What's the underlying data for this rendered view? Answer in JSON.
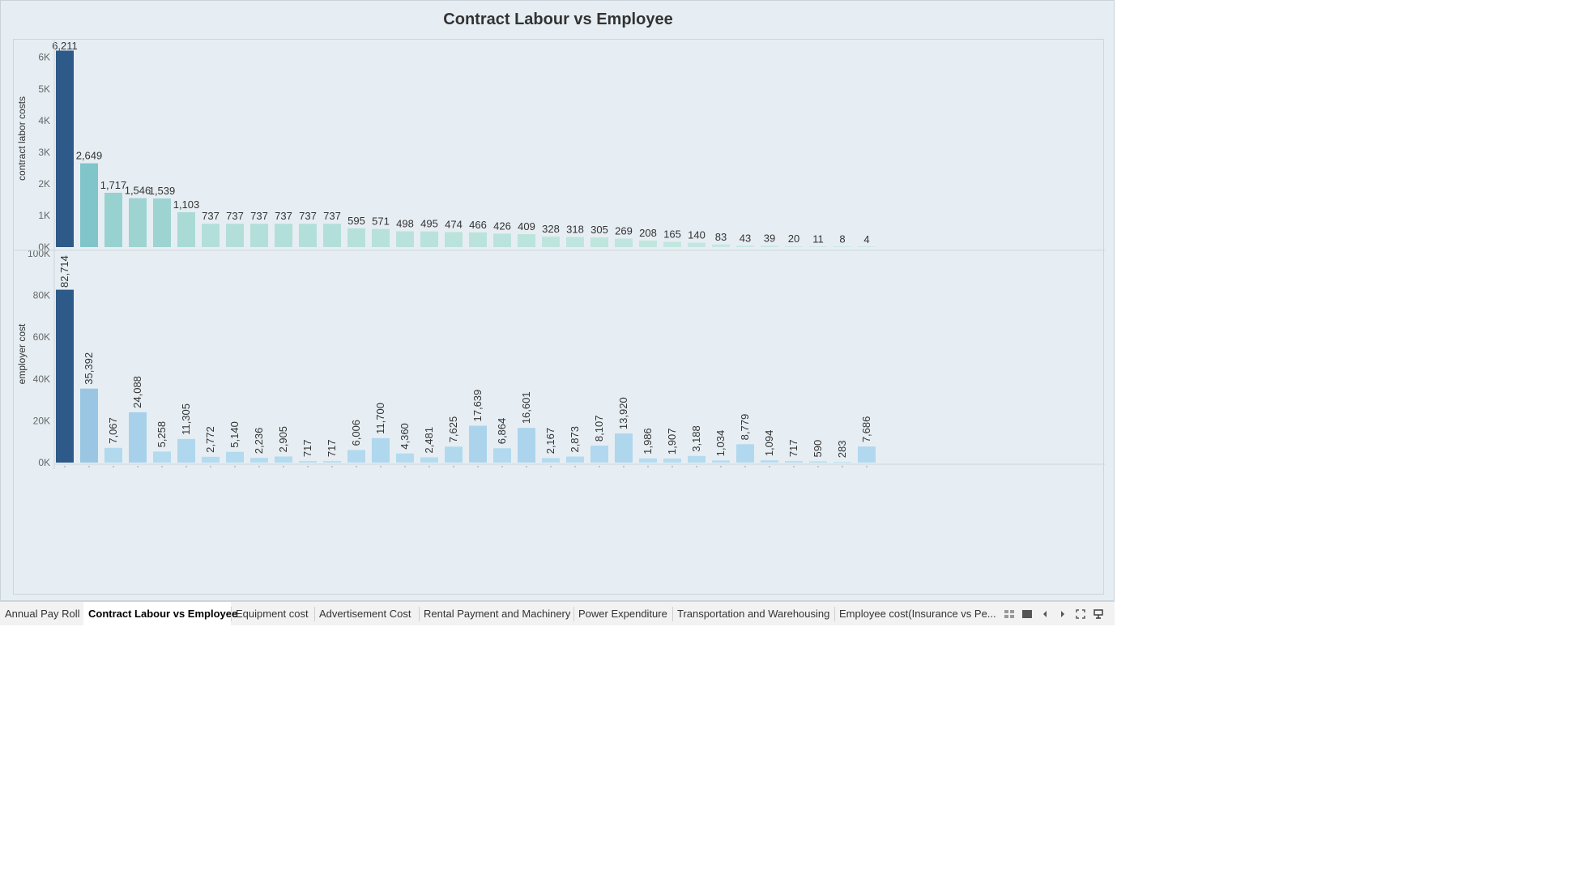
{
  "chart_data": {
    "title": "Contract Labour vs Employee",
    "panels": [
      {
        "type": "bar",
        "ylabel": "contract labor costs",
        "ylim": [
          0,
          6300
        ],
        "ticks": [
          0,
          1000,
          2000,
          3000,
          4000,
          5000,
          6000
        ],
        "tick_labels": [
          "0K",
          "1K",
          "2K",
          "3K",
          "4K",
          "5K",
          "6K"
        ],
        "values": [
          6211,
          2649,
          1717,
          1546,
          1539,
          1103,
          737,
          737,
          737,
          737,
          737,
          737,
          595,
          571,
          498,
          495,
          474,
          466,
          426,
          409,
          328,
          318,
          305,
          269,
          208,
          165,
          140,
          83,
          43,
          39,
          20,
          11,
          8,
          4
        ],
        "labels": [
          "6,211",
          "2,649",
          "1,717",
          "1,546",
          "1,539",
          "1,103",
          "737",
          "737",
          "737",
          "737",
          "737",
          "737",
          "595",
          "571",
          "498",
          "495",
          "474",
          "466",
          "426",
          "409",
          "328",
          "318",
          "305",
          "269",
          "208",
          "165",
          "140",
          "83",
          "43",
          "39",
          "20",
          "11",
          "8",
          "4"
        ],
        "color_scale": [
          "#c6e9e1",
          "#8fcdcc",
          "#5aafc3",
          "#2d5a88"
        ],
        "label_rotation": "horizontal"
      },
      {
        "type": "bar",
        "ylabel": "employer cost",
        "ylim": [
          0,
          100000
        ],
        "ticks": [
          0,
          20000,
          40000,
          60000,
          80000,
          100000
        ],
        "tick_labels": [
          "0K",
          "20K",
          "40K",
          "60K",
          "80K",
          "100K"
        ],
        "values": [
          82714,
          35392,
          7067,
          24088,
          5258,
          11305,
          2772,
          5140,
          2236,
          2905,
          717,
          717,
          6006,
          11700,
          4360,
          2481,
          7625,
          17639,
          6864,
          16601,
          2167,
          2873,
          8107,
          13920,
          1986,
          1907,
          3188,
          1034,
          8779,
          1094,
          717,
          590,
          283,
          7686
        ],
        "labels": [
          "82,714",
          "35,392",
          "7,067",
          "24,088",
          "5,258",
          "11,305",
          "2,772",
          "5,140",
          "2,236",
          "2,905",
          "717",
          "717",
          "6,006",
          "11,700",
          "4,360",
          "2,481",
          "7,625",
          "17,639",
          "6,864",
          "16,601",
          "2,167",
          "2,873",
          "8,107",
          "13,920",
          "1,986",
          "1,907",
          "3,188",
          "1,034",
          "8,779",
          "1,094",
          "717",
          "590",
          "283",
          "7,686"
        ],
        "color_scale": [
          "#b6dcf0",
          "#a5cfe9",
          "#7eaed3",
          "#2d5a88"
        ],
        "label_rotation": "vertical"
      }
    ],
    "grid": false,
    "legend": "none"
  },
  "tabs": [
    {
      "label": "Annual Pay Roll",
      "active": false
    },
    {
      "label": "Contract Labour vs Employee",
      "active": true
    },
    {
      "label": "Equipment cost",
      "active": false
    },
    {
      "label": "Advertisement Cost",
      "active": false
    },
    {
      "label": "Rental Payment and Machinery",
      "active": false
    },
    {
      "label": "Power Expenditure",
      "active": false
    },
    {
      "label": "Transportation and Warehousing",
      "active": false
    },
    {
      "label": "Employee cost(Insurance vs Pe...",
      "active": false
    }
  ],
  "controls": {
    "grid_view_icon": "grid-view-icon",
    "filmstrip_icon": "filmstrip-icon",
    "prev_icon": "chevron-left-icon",
    "next_icon": "chevron-right-icon",
    "fullscreen_icon": "fullscreen-icon",
    "present_icon": "presentation-icon"
  },
  "colors": {
    "background": "#e6eef3",
    "tab_bar": "#f2f2f2"
  }
}
